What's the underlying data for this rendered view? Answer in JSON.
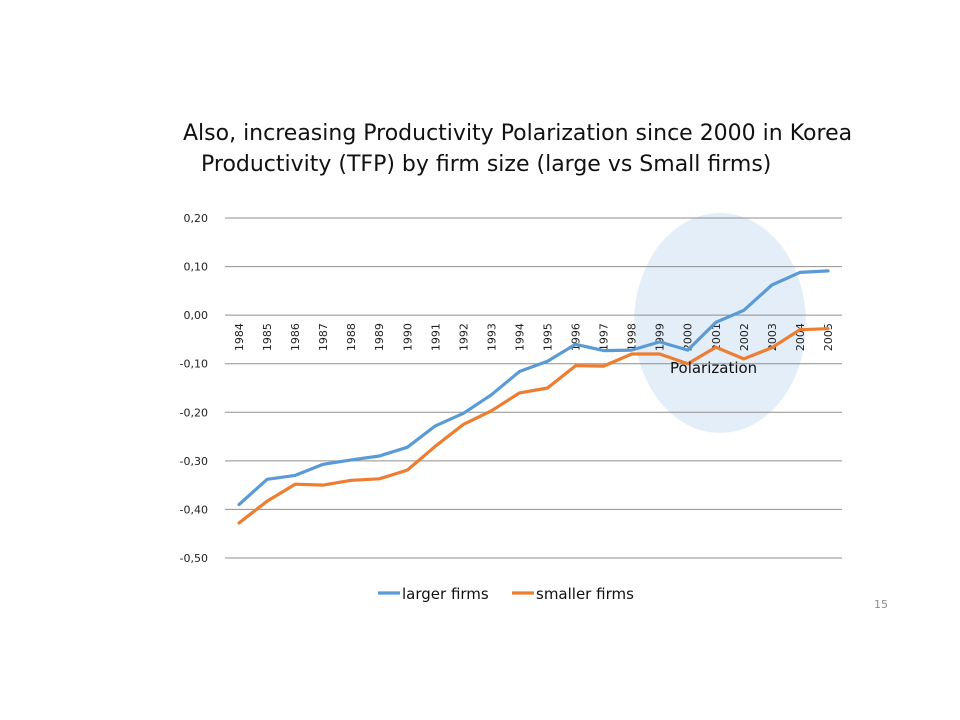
{
  "slide": {
    "title_line1": "Also, increasing Productivity Polarization since 2000 in Korea",
    "title_line2": "Productivity (TFP) by firm size (large vs Small firms)",
    "page_number": "15"
  },
  "chart_data": {
    "type": "line",
    "categories": [
      "1984",
      "1985",
      "1986",
      "1987",
      "1988",
      "1989",
      "1990",
      "1991",
      "1992",
      "1993",
      "1994",
      "1995",
      "1996",
      "1997",
      "1998",
      "1999",
      "2000",
      "2001",
      "2002",
      "2003",
      "2004",
      "2005"
    ],
    "series": [
      {
        "name": "larger firms",
        "color": "#5b9bd5",
        "values": [
          -0.39,
          -0.338,
          -0.33,
          -0.307,
          -0.298,
          -0.29,
          -0.272,
          -0.228,
          -0.202,
          -0.164,
          -0.116,
          -0.095,
          -0.06,
          -0.073,
          -0.072,
          -0.055,
          -0.072,
          -0.015,
          0.01,
          0.062,
          0.088,
          0.091
        ]
      },
      {
        "name": "smaller firms",
        "color": "#ed7d31",
        "values": [
          -0.428,
          -0.383,
          -0.348,
          -0.35,
          -0.34,
          -0.337,
          -0.319,
          -0.27,
          -0.225,
          -0.197,
          -0.16,
          -0.15,
          -0.104,
          -0.105,
          -0.08,
          -0.08,
          -0.1,
          -0.066,
          -0.09,
          -0.067,
          -0.03,
          -0.028
        ]
      }
    ],
    "y_ticks": [
      "0,20",
      "0,10",
      "0,00",
      "-0,10",
      "-0,20",
      "-0,30",
      "-0,40",
      "-0,50"
    ],
    "y_tick_values": [
      0.2,
      0.1,
      0.0,
      -0.1,
      -0.2,
      -0.3,
      -0.4,
      -0.5
    ],
    "ylim": [
      -0.5,
      0.2
    ],
    "grid": true,
    "legend_position": "bottom",
    "annotation": {
      "label": "Polarization",
      "region": "1999-2005",
      "fill_color": "#deebf7"
    },
    "title": "",
    "xlabel": "",
    "ylabel": ""
  }
}
